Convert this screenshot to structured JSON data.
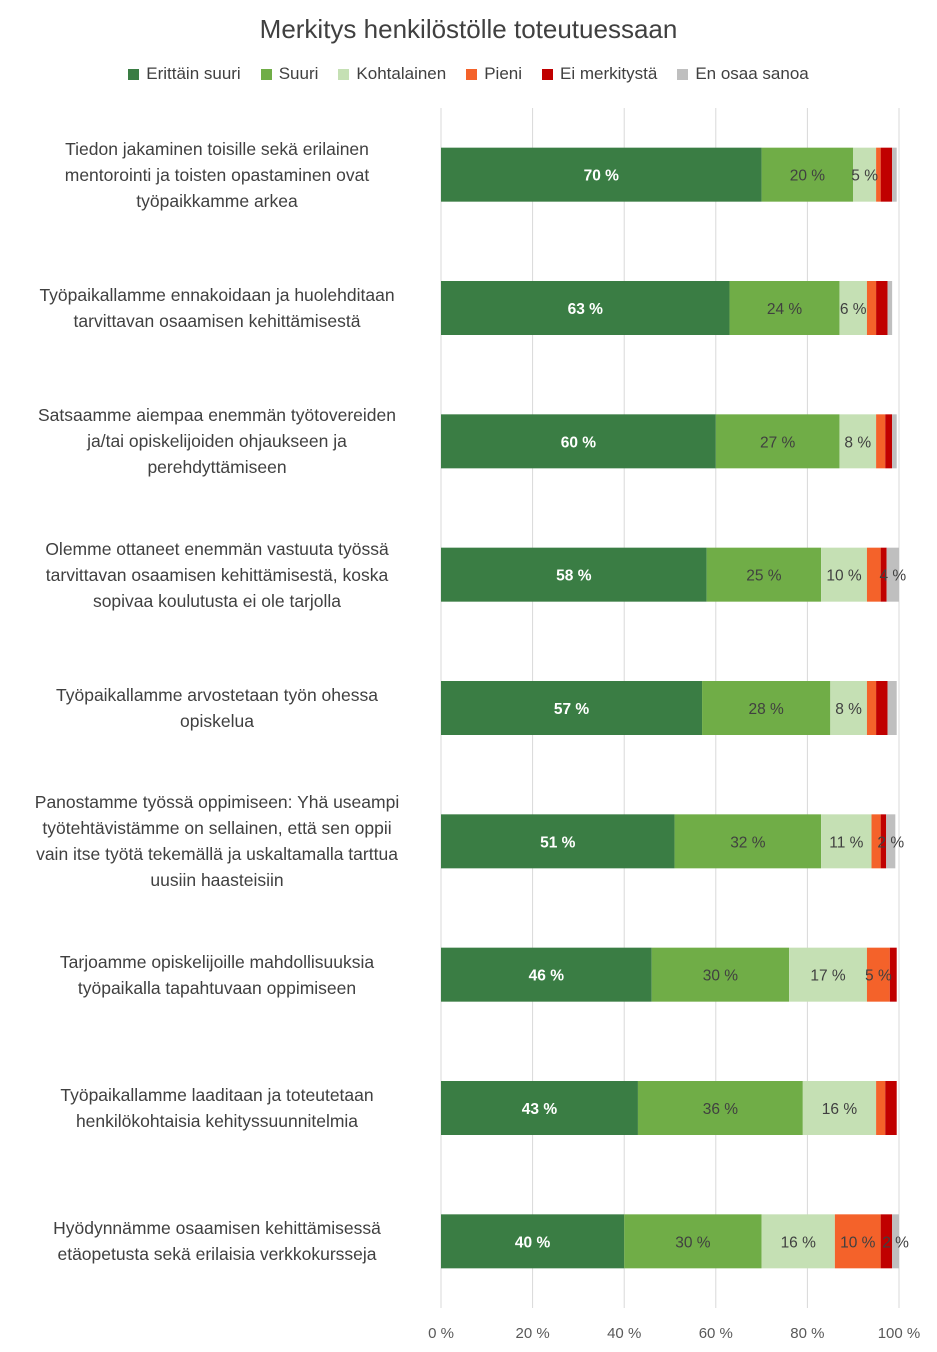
{
  "chart_data": {
    "type": "bar",
    "orientation": "horizontal",
    "stacked": "percent",
    "title": "Merkitys henkilöstölle toteutuessaan",
    "legend_position": "top",
    "grid": true,
    "xlim": [
      0,
      100
    ],
    "x_tick_labels": [
      "0 %",
      "20 %",
      "40 %",
      "60 %",
      "80 %",
      "100 %"
    ],
    "categories": [
      "Tiedon jakaminen toisille sekä erilainen mentorointi ja toisten opastaminen ovat työpaikkamme arkea",
      "Työpaikallamme ennakoidaan ja huolehditaan tarvittavan osaamisen kehittämisestä",
      "Satsaamme aiempaa enemmän työtovereiden ja/tai opiskelijoiden ohjaukseen ja perehdyttämiseen",
      "Olemme ottaneet enemmän vastuuta työssä tarvittavan osaamisen kehittämisestä, koska sopivaa koulutusta ei ole tarjolla",
      "Työpaikallamme arvostetaan työn ohessa opiskelua",
      "Panostamme työssä oppimiseen: Yhä useampi työtehtävistämme on sellainen, että sen oppii vain itse työtä tekemällä ja uskaltamalla tarttua uusiin haasteisiin",
      "Tarjoamme opiskelijoille mahdollisuuksia työpaikalla tapahtuvaan oppimiseen",
      "Työpaikallamme laaditaan ja toteutetaan henkilökohtaisia kehityssuunnitelmia",
      "Hyödynnämme osaamisen kehittämisessä etäopetusta sekä erilaisia verkkokursseja"
    ],
    "category_lines": [
      [
        "Tiedon jakaminen toisille sekä erilainen",
        "mentorointi ja toisten opastaminen ovat",
        "työpaikkamme arkea"
      ],
      [
        "Työpaikallamme ennakoidaan ja huolehditaan",
        "tarvittavan osaamisen kehittämisestä"
      ],
      [
        "Satsaamme aiempaa enemmän työtovereiden",
        "ja/tai opiskelijoiden ohjaukseen ja",
        "perehdyttämiseen"
      ],
      [
        "Olemme ottaneet enemmän vastuuta työssä",
        "tarvittavan osaamisen kehittämisestä, koska",
        "sopivaa koulutusta ei ole tarjolla"
      ],
      [
        "Työpaikallamme arvostetaan työn ohessa",
        "opiskelua"
      ],
      [
        "Panostamme työssä oppimiseen: Yhä useampi",
        "työtehtävistämme on sellainen, että sen oppii",
        "vain itse työtä tekemällä ja uskaltamalla tarttua",
        "uusiin haasteisiin"
      ],
      [
        "Tarjoamme opiskelijoille mahdollisuuksia",
        "työpaikalla tapahtuvaan oppimiseen"
      ],
      [
        "Työpaikallamme laaditaan ja toteutetaan",
        "henkilökohtaisia kehityssuunnitelmia"
      ],
      [
        "Hyödynnämme osaamisen kehittämisessä",
        "etäopetusta sekä erilaisia verkkokursseja"
      ]
    ],
    "series": [
      {
        "name": "Erittäin suuri",
        "color": "#3a7d44",
        "label_color": "#ffffff",
        "label_bold": true,
        "values": [
          70,
          63,
          60,
          58,
          57,
          51,
          46,
          43,
          40
        ],
        "labels": [
          "70 %",
          "63 %",
          "60 %",
          "58 %",
          "57 %",
          "51 %",
          "46 %",
          "43 %",
          "40 %"
        ]
      },
      {
        "name": "Suuri",
        "color": "#70ad47",
        "label_color": "#404040",
        "label_bold": false,
        "values": [
          20,
          24,
          27,
          25,
          28,
          32,
          30,
          36,
          30
        ],
        "labels": [
          "20 %",
          "24 %",
          "27 %",
          "25 %",
          "28 %",
          "32 %",
          "30 %",
          "36 %",
          "30 %"
        ]
      },
      {
        "name": "Kohtalainen",
        "color": "#c5e0b4",
        "label_color": "#404040",
        "label_bold": false,
        "values": [
          5,
          6,
          8,
          10,
          8,
          11,
          17,
          16,
          16
        ],
        "labels": [
          "5 %",
          "6 %",
          "8 %",
          "10 %",
          "8 %",
          "11 %",
          "17 %",
          "16 %",
          "16 %"
        ]
      },
      {
        "name": "Pieni",
        "color": "#f4622a",
        "label_color": "#404040",
        "label_bold": false,
        "values": [
          1,
          2,
          2,
          3,
          2,
          2,
          5,
          2,
          10
        ],
        "labels": [
          "",
          "",
          "",
          "",
          "",
          "",
          "5 %",
          "",
          "10 %"
        ]
      },
      {
        "name": "Ei merkitystä",
        "color": "#c00000",
        "label_color": "#404040",
        "label_bold": false,
        "values": [
          2.5,
          2.5,
          1.5,
          1.3,
          2.5,
          1.2,
          1.5,
          2.5,
          2.5
        ],
        "labels": [
          "",
          "",
          "",
          "",
          "",
          "",
          "",
          "",
          ""
        ]
      },
      {
        "name": "En osaa sanoa",
        "color": "#bfbfbf",
        "label_color": "#404040",
        "label_bold": false,
        "values": [
          1,
          1,
          1,
          4,
          2,
          2,
          0,
          0,
          2
        ],
        "labels": [
          "",
          "",
          "",
          "4 %",
          "",
          "2 %",
          "",
          "",
          "2 %"
        ]
      }
    ]
  }
}
